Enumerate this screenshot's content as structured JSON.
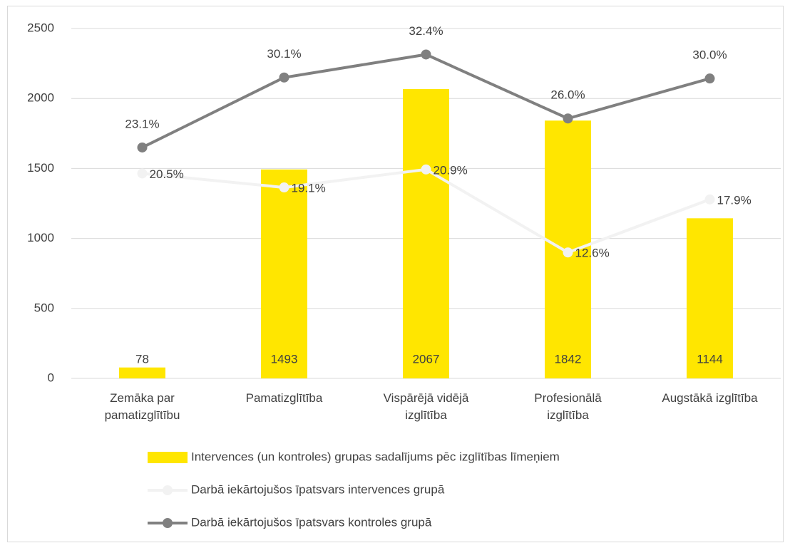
{
  "chart_data": {
    "type": "bar",
    "categories": [
      "Zemāka par pamatizglītību",
      "Pamatizglītība",
      "Vispārējā vidējā izglītība",
      "Profesionālā izglītība",
      "Augstākā izglītība"
    ],
    "series": [
      {
        "name": "Intervences (un kontroles) grupas sadalījums pēc izglītības līmeņiem",
        "type": "bar",
        "color": "#ffe600",
        "values": [
          78,
          1493,
          2067,
          1842,
          1144
        ]
      },
      {
        "name": "Darbā iekārtojušos īpatsvars intervences grupā",
        "type": "line",
        "axis": "y2",
        "color": "#f2f2f2",
        "values": [
          20.5,
          19.1,
          20.9,
          12.6,
          17.9
        ],
        "value_labels": [
          "20.5%",
          "19.1%",
          "20.9%",
          "12.6%",
          "17.9%"
        ]
      },
      {
        "name": "Darbā iekārtojušos īpatsvars kontroles grupā",
        "type": "line",
        "axis": "y2",
        "color": "#808080",
        "values": [
          23.1,
          30.1,
          32.4,
          26.0,
          30.0
        ],
        "value_labels": [
          "23.1%",
          "30.1%",
          "32.4%",
          "26.0%",
          "30.0%"
        ]
      }
    ],
    "ylim": [
      0,
      2500
    ],
    "yticks": [
      0,
      500,
      1000,
      1500,
      2000,
      2500
    ],
    "y2lim": [
      0,
      35
    ],
    "grid": true,
    "legend": "bottom"
  }
}
